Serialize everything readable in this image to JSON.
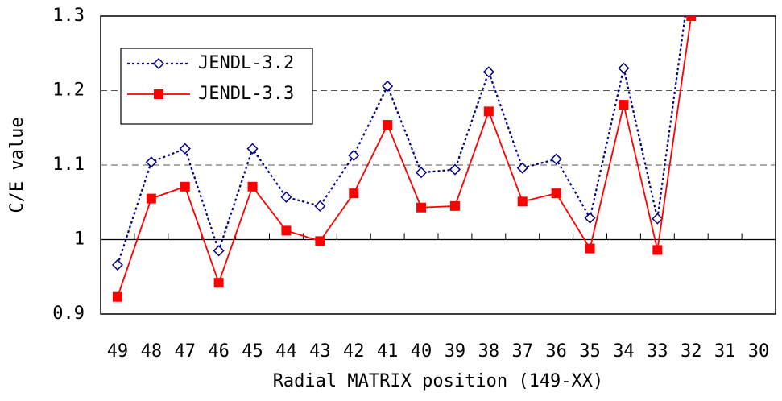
{
  "chart_data": {
    "type": "line",
    "x_label": "Radial MATRIX position (149-XX)",
    "y_label": "C/E value",
    "categories": [
      "49",
      "48",
      "47",
      "46",
      "45",
      "44",
      "43",
      "42",
      "41",
      "40",
      "39",
      "38",
      "37",
      "36",
      "35",
      "34",
      "33",
      "32",
      "31",
      "30"
    ],
    "series": [
      {
        "name": "JENDL-3.2",
        "color": "#000080",
        "values": [
          0.966,
          1.104,
          1.122,
          0.985,
          1.122,
          1.057,
          1.045,
          1.113,
          1.206,
          1.09,
          1.094,
          1.225,
          1.096,
          1.108,
          1.029,
          1.23,
          1.028,
          1.36,
          null,
          null
        ]
      },
      {
        "name": "JENDL-3.3",
        "color": "#ff0000",
        "values": [
          0.923,
          1.055,
          1.071,
          0.942,
          1.071,
          1.012,
          0.998,
          1.062,
          1.154,
          1.043,
          1.045,
          1.172,
          1.051,
          1.062,
          0.988,
          1.181,
          0.986,
          1.3,
          null,
          null
        ]
      }
    ],
    "ylim": [
      0.9,
      1.3
    ],
    "yticks": [
      0.9,
      1,
      1.1,
      1.2,
      1.3
    ],
    "grid": true,
    "legend": "upper-left"
  }
}
